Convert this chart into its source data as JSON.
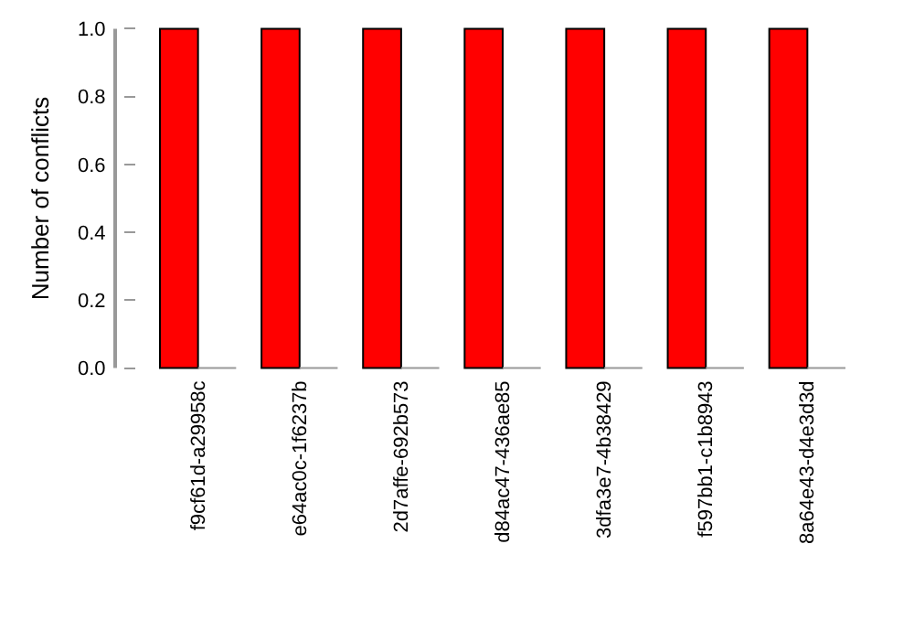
{
  "chart_data": {
    "type": "bar",
    "ylabel": "Number of conflicts",
    "categories": [
      "f9cf61d-a29958c",
      "e64ac0c-1f6237b",
      "2d7affe-692b573",
      "d84ac47-436ae85",
      "3dfa3e7-4b38429",
      "f597bb1-c1b8943",
      "8a64e43-d4e3d3d"
    ],
    "series": [
      {
        "color": "#ff0000",
        "values": [
          1,
          1,
          1,
          1,
          1,
          1,
          1
        ]
      },
      {
        "color": "#999999",
        "values": [
          0,
          0,
          0,
          0,
          0,
          0,
          0
        ]
      }
    ],
    "ylim": [
      0,
      1
    ],
    "yticks": [
      {
        "value": 0,
        "label": "0.0"
      },
      {
        "value": 0.2,
        "label": "0.2"
      },
      {
        "value": 0.4,
        "label": "0.4"
      },
      {
        "value": 0.6,
        "label": "0.6"
      },
      {
        "value": 0.8,
        "label": "0.8"
      },
      {
        "value": 1,
        "label": "1.0"
      }
    ],
    "legend": false
  }
}
